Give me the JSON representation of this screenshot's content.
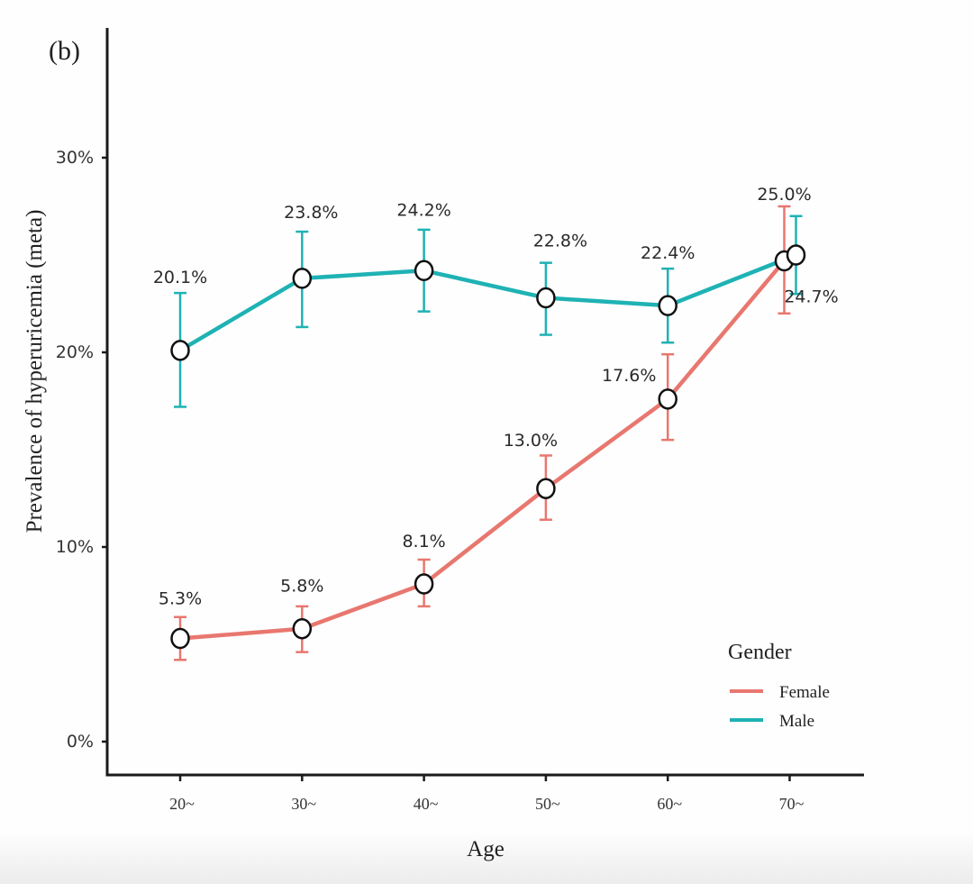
{
  "chart_data": {
    "type": "line",
    "panel_label": "(b)",
    "xlabel": "Age",
    "ylabel": "Prevalence of hyperuricemia  (meta)",
    "categories": [
      "20~",
      "30~",
      "40~",
      "50~",
      "60~",
      "70~"
    ],
    "ylim": [
      -1.7,
      36.5
    ],
    "yticks": [
      0,
      10,
      20,
      30
    ],
    "ytick_labels": [
      "0%",
      "10%",
      "20%",
      "30%"
    ],
    "grid": false,
    "legend": {
      "title": "Gender",
      "position": "bottom-right"
    },
    "series": [
      {
        "name": "Female",
        "color": "#e8776f",
        "values": [
          5.3,
          5.8,
          8.1,
          13.0,
          17.6,
          24.7
        ],
        "labels": [
          "5.3%",
          "5.8%",
          "8.1%",
          "13.0%",
          "17.6%",
          "24.7%"
        ],
        "err_low": [
          4.2,
          4.6,
          6.95,
          11.4,
          15.5,
          22.0
        ],
        "err_high": [
          6.4,
          6.95,
          9.35,
          14.7,
          19.9,
          27.5
        ]
      },
      {
        "name": "Male",
        "color": "#1fb2b4",
        "values": [
          20.1,
          23.8,
          24.2,
          22.8,
          22.4,
          25.0
        ],
        "labels": [
          "20.1%",
          "23.8%",
          "24.2%",
          "22.8%",
          "22.4%",
          "25.0%"
        ],
        "err_low": [
          17.2,
          21.3,
          22.1,
          20.9,
          20.5,
          23.0
        ],
        "err_high": [
          23.05,
          26.2,
          26.3,
          24.6,
          24.3,
          27.0
        ]
      }
    ]
  }
}
